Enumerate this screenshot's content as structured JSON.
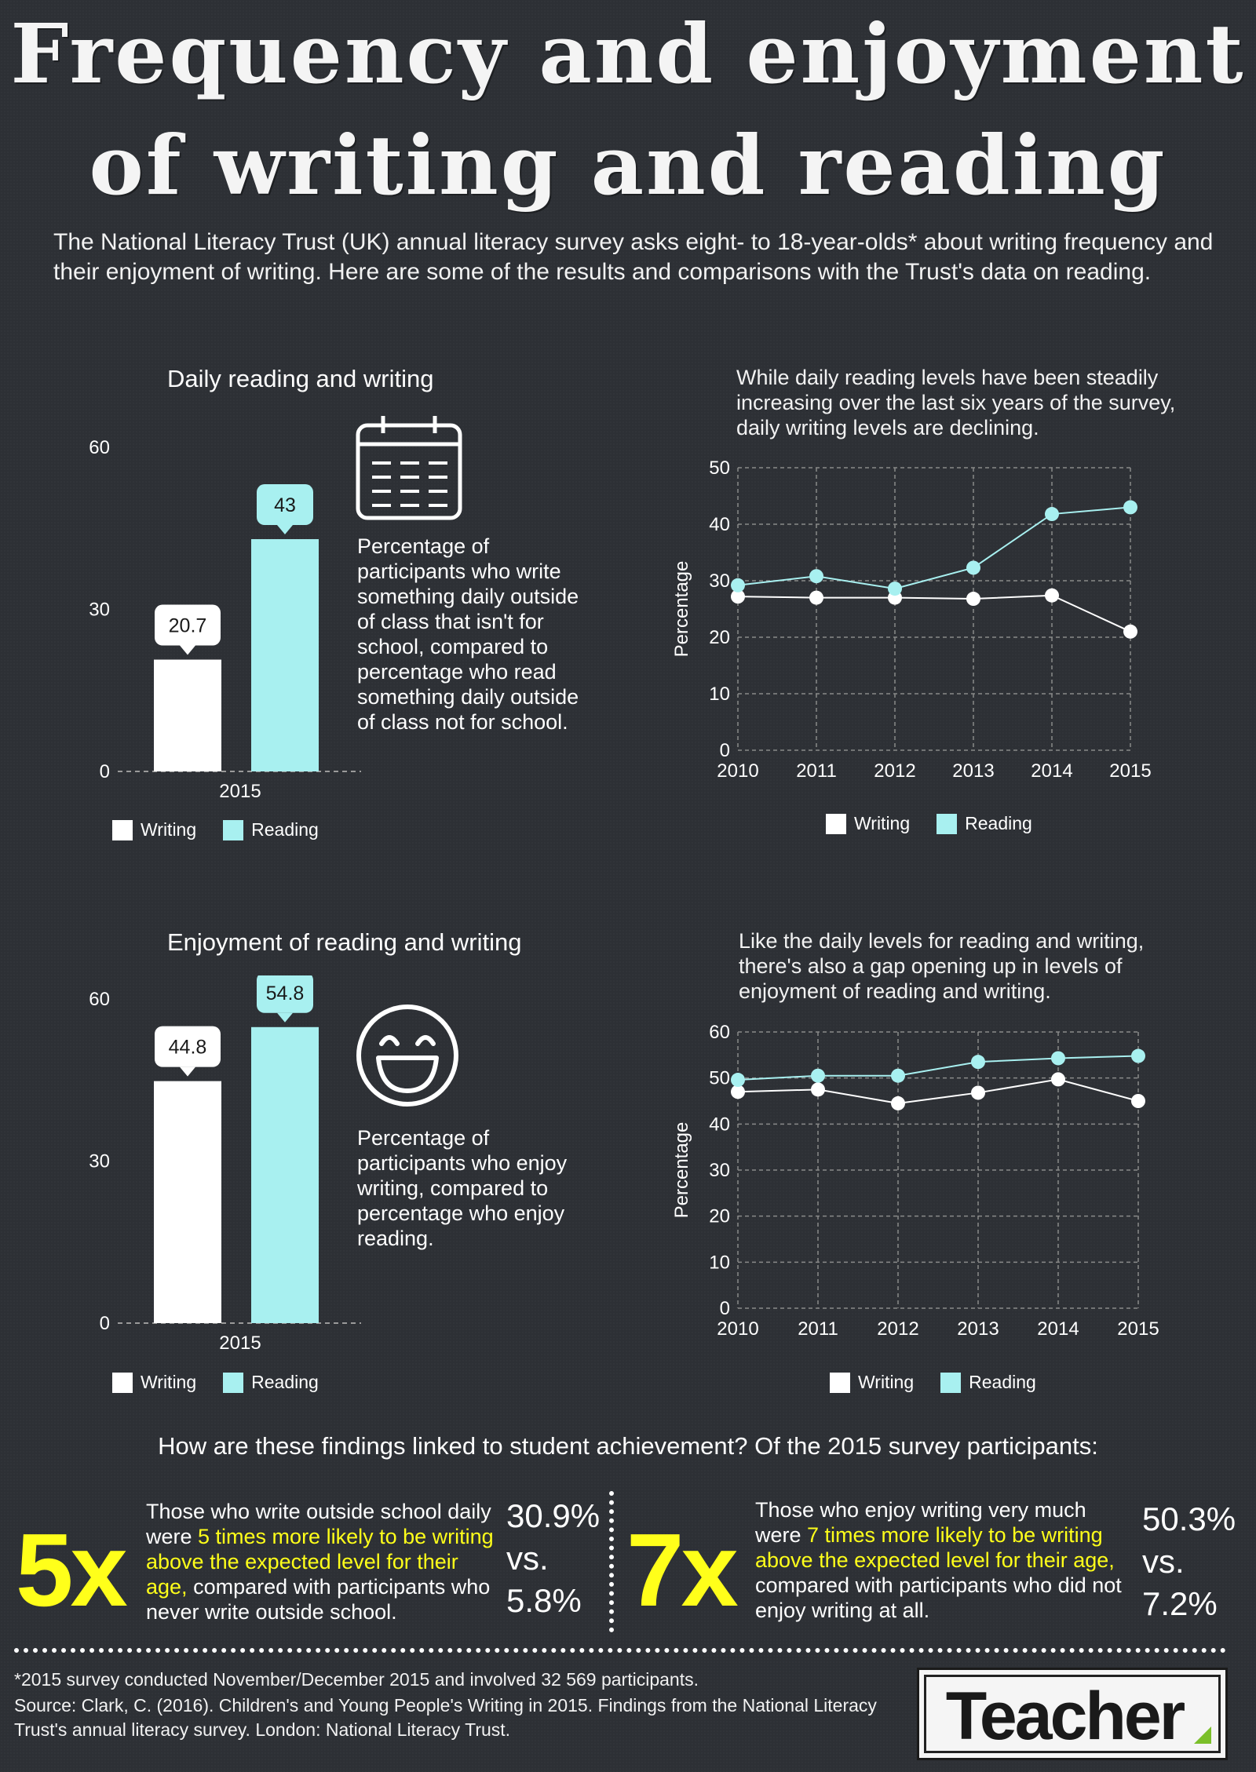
{
  "title_line1": "Frequency and enjoyment",
  "title_line2": "of writing and reading",
  "intro": "The National Literacy Trust (UK) annual literacy survey asks eight- to 18-year-olds* about writing frequency and their enjoyment of writing. Here are some of the results and comparisons with the Trust's data on reading.",
  "colors": {
    "writing": "#ffffff",
    "reading": "#a8f0f0",
    "highlight": "#ffff1a",
    "background": "#2d3035"
  },
  "legend": {
    "writing": "Writing",
    "reading": "Reading"
  },
  "daily_bar": {
    "title": "Daily reading and writing",
    "icon": "calendar-icon",
    "description": "Percentage of participants who write something daily outside of class that isn't for school, compared to percentage who read something daily outside of class not for school."
  },
  "daily_line": {
    "note": "While daily reading levels have been steadily increasing over the last six years of the survey, daily writing levels are declining."
  },
  "enjoy_bar": {
    "title": "Enjoyment of reading and writing",
    "icon": "smiley-face-icon",
    "description": "Percentage of participants who enjoy writing, compared to percentage who enjoy reading."
  },
  "enjoy_line": {
    "note": "Like the daily levels for reading and writing, there's also a gap opening up in levels of enjoyment of reading and writing."
  },
  "chart_data": [
    {
      "type": "bar",
      "title": "Daily reading and writing",
      "categories": [
        "2015"
      ],
      "series": [
        {
          "name": "Writing",
          "values": [
            20.7
          ]
        },
        {
          "name": "Reading",
          "values": [
            43
          ]
        }
      ],
      "yticks": [
        "0",
        "30",
        "60"
      ],
      "ylim": [
        0,
        60
      ],
      "data_labels": [
        "20.7",
        "43"
      ],
      "legend_position": "bottom"
    },
    {
      "type": "line",
      "x": [
        "2010",
        "2011",
        "2012",
        "2013",
        "2014",
        "2015"
      ],
      "series": [
        {
          "name": "Writing",
          "values": [
            27.2,
            27,
            27,
            26.8,
            27.4,
            21
          ]
        },
        {
          "name": "Reading",
          "values": [
            29.2,
            30.8,
            28.6,
            32.3,
            41.8,
            43
          ]
        }
      ],
      "ylabel": "Percentage",
      "yticks": [
        "0",
        "10",
        "20",
        "30",
        "40",
        "50"
      ],
      "ylim": [
        0,
        50
      ],
      "grid": true,
      "legend_position": "bottom"
    },
    {
      "type": "bar",
      "title": "Enjoyment of reading and writing",
      "categories": [
        "2015"
      ],
      "series": [
        {
          "name": "Writing",
          "values": [
            44.8
          ]
        },
        {
          "name": "Reading",
          "values": [
            54.8
          ]
        }
      ],
      "yticks": [
        "0",
        "30",
        "60"
      ],
      "ylim": [
        0,
        60
      ],
      "data_labels": [
        "44.8",
        "54.8"
      ],
      "legend_position": "bottom"
    },
    {
      "type": "line",
      "x": [
        "2010",
        "2011",
        "2012",
        "2013",
        "2014",
        "2015"
      ],
      "series": [
        {
          "name": "Writing",
          "values": [
            47,
            47.5,
            44.5,
            46.8,
            49.7,
            45
          ]
        },
        {
          "name": "Reading",
          "values": [
            49.6,
            50.5,
            50.5,
            53.5,
            54.3,
            54.8
          ]
        }
      ],
      "ylabel": "Percentage",
      "yticks": [
        "0",
        "10",
        "20",
        "30",
        "40",
        "50",
        "60"
      ],
      "ylim": [
        0,
        60
      ],
      "grid": true,
      "legend_position": "bottom"
    }
  ],
  "question": "How are these findings linked to student achievement? Of the 2015 survey participants:",
  "finding1": {
    "big": "5x",
    "pre": "Those who write outside school daily were ",
    "highlight": "5 times more likely to be writing above the expected level for their age,",
    "post": " compared with participants who never write outside school.",
    "stat1": "30.9%",
    "vs": "vs.",
    "stat2": "5.8%"
  },
  "finding2": {
    "big": "7x",
    "pre": "Those who enjoy writing very much were ",
    "highlight": "7 times more likely to be writing above the expected level for their age,",
    "post": " compared with participants who did not enjoy writing at all.",
    "stat1": "50.3%",
    "vs": "vs.",
    "stat2": "7.2%"
  },
  "footnote": "*2015 survey conducted November/December 2015 and involved 32 569 participants.",
  "source": "Source: Clark, C. (2016). Children's and Young People's Writing in 2015. Findings from the National Literacy Trust's annual literacy survey. London: National Literacy Trust.",
  "logo": "Teacher"
}
